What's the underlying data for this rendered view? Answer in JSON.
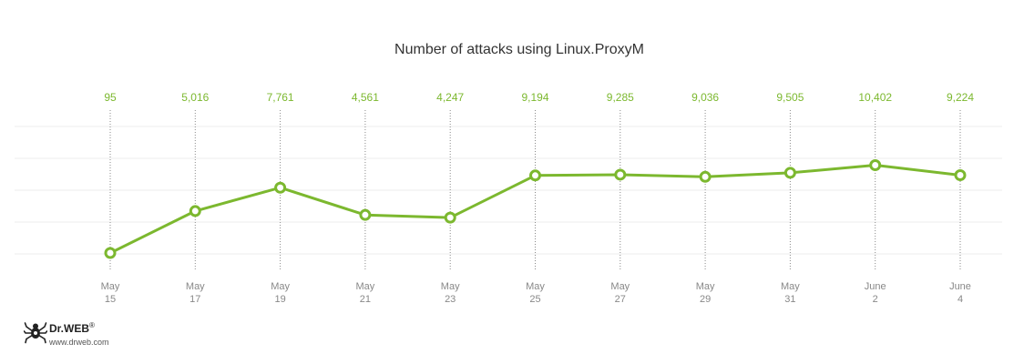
{
  "chart_data": {
    "type": "line",
    "title": "Number of attacks using Linux.ProxyM",
    "xlabel": "",
    "ylabel": "",
    "ylim": [
      0,
      12000
    ],
    "grid": true,
    "legend": "none",
    "categories": [
      [
        "May",
        "15"
      ],
      [
        "May",
        "17"
      ],
      [
        "May",
        "19"
      ],
      [
        "May",
        "21"
      ],
      [
        "May",
        "23"
      ],
      [
        "May",
        "25"
      ],
      [
        "May",
        "27"
      ],
      [
        "May",
        "29"
      ],
      [
        "May",
        "31"
      ],
      [
        "June",
        "2"
      ],
      [
        "June",
        "4"
      ]
    ],
    "series": [
      {
        "values": [
          95,
          5016,
          7761,
          4561,
          4247,
          9194,
          9285,
          9036,
          9505,
          10402,
          9224
        ],
        "labels": [
          "95",
          "5,016",
          "7,761",
          "4,561",
          "4,247",
          "9,194",
          "9,285",
          "9,036",
          "9,505",
          "10,402",
          "9,224"
        ],
        "color": "#7cb82f"
      }
    ]
  },
  "logo": {
    "brand": "Dr.WEB",
    "registered": "®",
    "url": "www.drweb.com"
  }
}
